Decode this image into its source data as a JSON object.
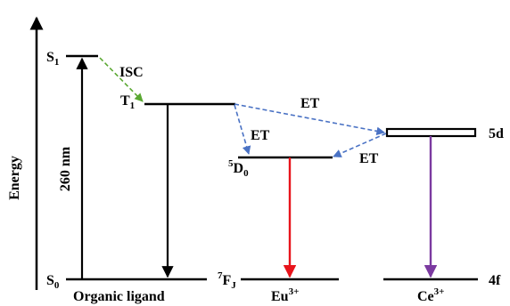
{
  "axis": {
    "label": "Energy"
  },
  "levels": {
    "s1": {
      "main": "S",
      "sub": "1"
    },
    "s0": {
      "main": "S",
      "sub": "0"
    },
    "t1": {
      "main": "T",
      "sub": "1"
    },
    "d0": {
      "sup": "5",
      "main": "D",
      "sub": "0"
    },
    "fj": {
      "sup": "7",
      "main": "F",
      "sub": "J"
    },
    "d5": {
      "main": "5d"
    },
    "f4": {
      "main": "4f"
    }
  },
  "transitions": {
    "excitation": "260 nm",
    "isc": "ISC",
    "et_top": "ET",
    "et_left": "ET",
    "et_right": "ET"
  },
  "groups": {
    "organic": "Organic ligand",
    "eu": {
      "main": "Eu",
      "sup": "3+"
    },
    "ce": {
      "main": "Ce",
      "sup": "3+"
    }
  },
  "colors": {
    "black": "#000000",
    "isc_green": "#5aa832",
    "et_blue": "#4a72c4",
    "eu_red": "#e8141b",
    "ce_purple": "#7b3aa0"
  }
}
